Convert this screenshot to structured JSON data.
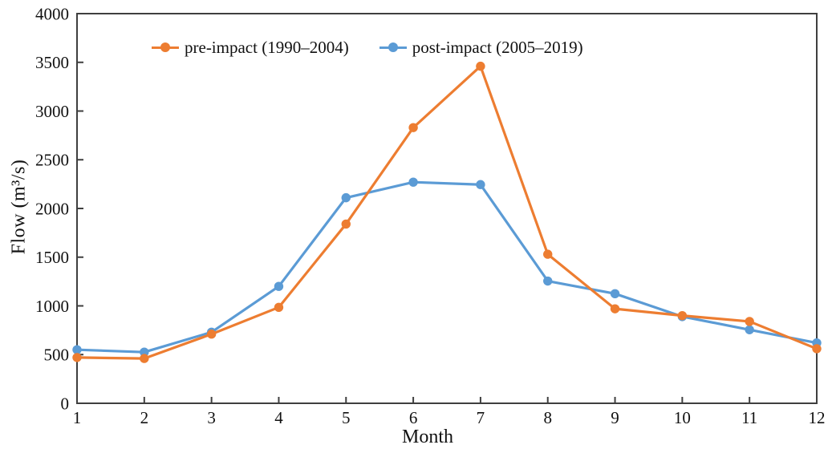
{
  "figure": {
    "background": "#ffffff",
    "axis_color": "#3f3f3f",
    "text_color": "#111111"
  },
  "chart_data": {
    "type": "line",
    "title": "",
    "xlabel": "Month",
    "ylabel": "Flow (m³/s)",
    "categories": [
      "1",
      "2",
      "3",
      "4",
      "5",
      "6",
      "7",
      "8",
      "9",
      "10",
      "11",
      "12"
    ],
    "series": [
      {
        "name": "pre-impact (1990–2004)",
        "color": "#ED7D31",
        "values": [
          470,
          460,
          710,
          985,
          1840,
          2830,
          3460,
          1530,
          970,
          900,
          840,
          560
        ]
      },
      {
        "name": "post-impact (2005–2019)",
        "color": "#5B9BD5",
        "values": [
          550,
          525,
          730,
          1200,
          2110,
          2270,
          2245,
          1255,
          1125,
          890,
          755,
          620
        ]
      }
    ],
    "ylim": [
      0,
      4000
    ],
    "ytick_step": 500,
    "grid": false,
    "legend_position": "top-inside",
    "marker": "circle",
    "line_width": 3.2,
    "marker_radius": 5.7
  }
}
